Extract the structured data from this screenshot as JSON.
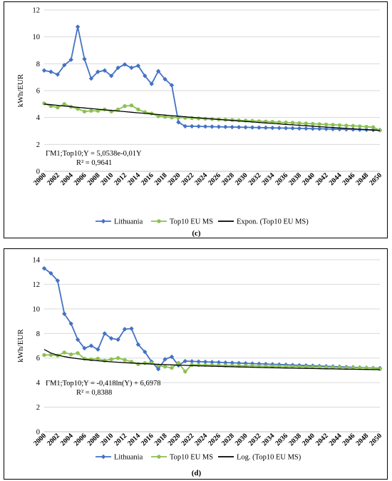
{
  "chart_data": [
    {
      "id": "c",
      "type": "line",
      "caption": "(c)",
      "ylabel": "kWh/EUR",
      "xlabel": "",
      "ylim": [
        0,
        12
      ],
      "yticks": [
        0,
        2,
        4,
        6,
        8,
        10,
        12
      ],
      "xlim": [
        2000,
        2050
      ],
      "xticks": [
        2000,
        2002,
        2004,
        2006,
        2008,
        2010,
        2012,
        2014,
        2016,
        2018,
        2020,
        2022,
        2024,
        2026,
        2028,
        2030,
        2032,
        2034,
        2036,
        2038,
        2040,
        2042,
        2044,
        2046,
        2048,
        2050
      ],
      "x": [
        2000,
        2001,
        2002,
        2003,
        2004,
        2005,
        2006,
        2007,
        2008,
        2009,
        2010,
        2011,
        2012,
        2013,
        2014,
        2015,
        2016,
        2017,
        2018,
        2019,
        2020,
        2021,
        2022,
        2023,
        2024,
        2025,
        2026,
        2027,
        2028,
        2029,
        2030,
        2031,
        2032,
        2033,
        2034,
        2035,
        2036,
        2037,
        2038,
        2039,
        2040,
        2041,
        2042,
        2043,
        2044,
        2045,
        2046,
        2047,
        2048,
        2049,
        2050
      ],
      "series": [
        {
          "name": "Lithuania",
          "color": "#4472c4",
          "marker": "diamond",
          "values": [
            7.5,
            7.4,
            7.2,
            7.9,
            8.3,
            10.75,
            8.35,
            6.9,
            7.4,
            7.5,
            7.1,
            7.7,
            7.95,
            7.7,
            7.85,
            7.1,
            6.5,
            7.45,
            6.85,
            6.4,
            3.65,
            3.35,
            3.35,
            3.34,
            3.33,
            3.32,
            3.31,
            3.3,
            3.29,
            3.28,
            3.27,
            3.26,
            3.25,
            3.24,
            3.23,
            3.22,
            3.21,
            3.2,
            3.19,
            3.18,
            3.17,
            3.16,
            3.15,
            3.14,
            3.13,
            3.12,
            3.11,
            3.1,
            3.09,
            3.08,
            3.07
          ]
        },
        {
          "name": "Top10 EU MS",
          "color": "#8cc152",
          "marker": "circle",
          "values": [
            5.05,
            4.85,
            4.75,
            5.0,
            4.8,
            4.65,
            4.45,
            4.5,
            4.5,
            4.6,
            4.45,
            4.6,
            4.85,
            4.9,
            4.6,
            4.4,
            4.3,
            4.1,
            4.05,
            4.0,
            4.0,
            3.98,
            3.96,
            3.93,
            3.91,
            3.89,
            3.86,
            3.84,
            3.82,
            3.79,
            3.77,
            3.75,
            3.72,
            3.7,
            3.68,
            3.65,
            3.63,
            3.61,
            3.58,
            3.56,
            3.53,
            3.51,
            3.48,
            3.46,
            3.43,
            3.4,
            3.38,
            3.35,
            3.31,
            3.28,
            3.04
          ]
        }
      ],
      "trendline": {
        "name": "Expon. (Top10 EU MS)",
        "color": "#000000",
        "kind": "exponential",
        "a": 5.0538,
        "b": -0.01
      },
      "equation": "ΓM1;Top10;Y   = 5,0538e-0,01Y",
      "r2": "R² = 0,9641"
    },
    {
      "id": "d",
      "type": "line",
      "caption": "(d)",
      "ylabel": "kWh/EUR",
      "xlabel": "",
      "ylim": [
        0,
        14
      ],
      "yticks": [
        0,
        2,
        4,
        6,
        8,
        10,
        12,
        14
      ],
      "xlim": [
        2000,
        2050
      ],
      "xticks": [
        2000,
        2002,
        2004,
        2006,
        2008,
        2010,
        2012,
        2014,
        2016,
        2018,
        2020,
        2022,
        2024,
        2026,
        2028,
        2030,
        2032,
        2034,
        2036,
        2038,
        2040,
        2042,
        2044,
        2046,
        2048,
        2050
      ],
      "x": [
        2000,
        2001,
        2002,
        2003,
        2004,
        2005,
        2006,
        2007,
        2008,
        2009,
        2010,
        2011,
        2012,
        2013,
        2014,
        2015,
        2016,
        2017,
        2018,
        2019,
        2020,
        2021,
        2022,
        2023,
        2024,
        2025,
        2026,
        2027,
        2028,
        2029,
        2030,
        2031,
        2032,
        2033,
        2034,
        2035,
        2036,
        2037,
        2038,
        2039,
        2040,
        2041,
        2042,
        2043,
        2044,
        2045,
        2046,
        2047,
        2048,
        2049,
        2050
      ],
      "series": [
        {
          "name": "Lithuania",
          "color": "#4472c4",
          "marker": "diamond",
          "values": [
            13.3,
            12.9,
            12.3,
            9.6,
            8.8,
            7.5,
            6.8,
            7.0,
            6.7,
            8.0,
            7.6,
            7.5,
            8.35,
            8.4,
            7.1,
            6.5,
            5.7,
            5.1,
            5.9,
            6.1,
            5.4,
            5.75,
            5.73,
            5.71,
            5.69,
            5.67,
            5.65,
            5.63,
            5.61,
            5.59,
            5.57,
            5.55,
            5.53,
            5.51,
            5.49,
            5.47,
            5.45,
            5.43,
            5.41,
            5.39,
            5.37,
            5.35,
            5.33,
            5.31,
            5.29,
            5.27,
            5.25,
            5.23,
            5.21,
            5.19,
            5.17
          ]
        },
        {
          "name": "Top10 EU MS",
          "color": "#8cc152",
          "marker": "circle",
          "values": [
            6.25,
            6.25,
            6.2,
            6.45,
            6.3,
            6.4,
            5.95,
            5.9,
            5.95,
            5.8,
            5.9,
            6.0,
            5.85,
            5.7,
            5.5,
            5.6,
            5.6,
            5.4,
            5.3,
            5.2,
            5.6,
            4.9,
            5.45,
            5.44,
            5.43,
            5.42,
            5.41,
            5.4,
            5.39,
            5.38,
            5.37,
            5.36,
            5.35,
            5.34,
            5.33,
            5.32,
            5.31,
            5.3,
            5.29,
            5.28,
            5.27,
            5.26,
            5.25,
            5.24,
            5.23,
            5.22,
            5.21,
            5.2,
            5.19,
            5.18,
            5.1
          ]
        }
      ],
      "trendline": {
        "name": "Log. (Top10 EU MS)",
        "color": "#000000",
        "kind": "logarithmic",
        "a": -0.418,
        "b": 6.6978
      },
      "equation": "ΓM1;Top10;Y   = -0,418ln(Y) + 6,6978",
      "r2": "R² = 0,8388"
    }
  ]
}
